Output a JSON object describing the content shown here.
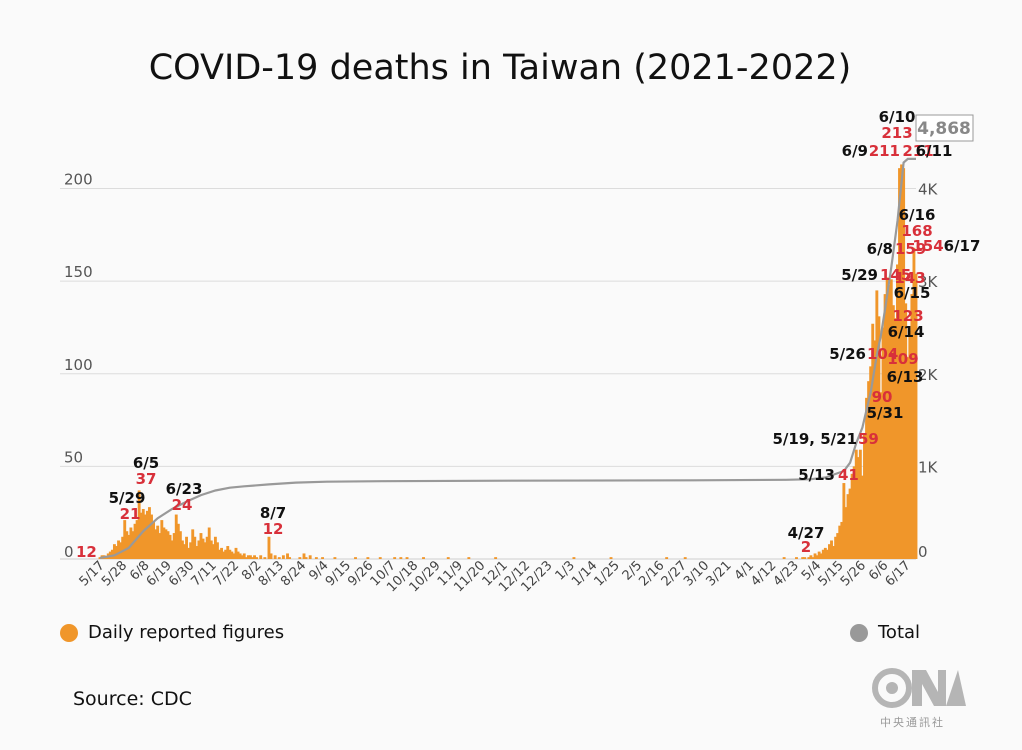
{
  "title": "COVID-19 deaths in Taiwan (2021-2022)",
  "source": "Source: CDC",
  "logo_text": "中央通訊社",
  "legend": [
    {
      "label": "Daily reported figures",
      "color": "#f0962a"
    },
    {
      "label": "Total",
      "color": "#999999"
    }
  ],
  "chart_data": {
    "type": "bar",
    "title": "COVID-19 deaths in Taiwan (2021-2022)",
    "left_axis": {
      "ticks": [
        "0",
        "50",
        "100",
        "150",
        "200"
      ],
      "values": [
        0,
        50,
        100,
        150,
        200
      ],
      "ylim": [
        0,
        210
      ]
    },
    "right_axis": {
      "ticks": [
        "0",
        "1K",
        "2K",
        "3K",
        "4K"
      ],
      "values": [
        0,
        1000,
        2000,
        3000,
        4000
      ],
      "ylim": [
        0,
        4200
      ]
    },
    "x_ticks": [
      "5/17",
      "5/28",
      "6/8",
      "6/19",
      "6/30",
      "7/11",
      "7/22",
      "8/2",
      "8/13",
      "8/24",
      "9/4",
      "9/15",
      "9/26",
      "10/7",
      "10/18",
      "10/29",
      "11/9",
      "11/20",
      "12/1",
      "12/12",
      "12/23",
      "1/3",
      "1/14",
      "1/25",
      "2/5",
      "2/16",
      "2/27",
      "3/10",
      "3/21",
      "4/1",
      "4/12",
      "4/23",
      "5/4",
      "5/15",
      "5/26",
      "6/6",
      "6/17"
    ],
    "series": [
      {
        "name": "Daily reported figures",
        "color": "#f0962a",
        "type": "bar",
        "points": [
          [
            "2021-05-17",
            1
          ],
          [
            "2021-05-18",
            2
          ],
          [
            "2021-05-19",
            2
          ],
          [
            "2021-05-20",
            1
          ],
          [
            "2021-05-21",
            3
          ],
          [
            "2021-05-22",
            4
          ],
          [
            "2021-05-23",
            5
          ],
          [
            "2021-05-24",
            8
          ],
          [
            "2021-05-25",
            7
          ],
          [
            "2021-05-26",
            10
          ],
          [
            "2021-05-27",
            9
          ],
          [
            "2021-05-28",
            12
          ],
          [
            "2021-05-29",
            21
          ],
          [
            "2021-05-30",
            15
          ],
          [
            "2021-05-31",
            13
          ],
          [
            "2021-06-01",
            17
          ],
          [
            "2021-06-02",
            15
          ],
          [
            "2021-06-03",
            19
          ],
          [
            "2021-06-04",
            21
          ],
          [
            "2021-06-05",
            37
          ],
          [
            "2021-06-06",
            25
          ],
          [
            "2021-06-07",
            27
          ],
          [
            "2021-06-08",
            24
          ],
          [
            "2021-06-09",
            26
          ],
          [
            "2021-06-10",
            28
          ],
          [
            "2021-06-11",
            24
          ],
          [
            "2021-06-12",
            20
          ],
          [
            "2021-06-13",
            16
          ],
          [
            "2021-06-14",
            18
          ],
          [
            "2021-06-15",
            14
          ],
          [
            "2021-06-16",
            21
          ],
          [
            "2021-06-17",
            17
          ],
          [
            "2021-06-18",
            16
          ],
          [
            "2021-06-19",
            15
          ],
          [
            "2021-06-20",
            13
          ],
          [
            "2021-06-21",
            10
          ],
          [
            "2021-06-22",
            14
          ],
          [
            "2021-06-23",
            24
          ],
          [
            "2021-06-24",
            19
          ],
          [
            "2021-06-25",
            15
          ],
          [
            "2021-06-26",
            10
          ],
          [
            "2021-06-27",
            8
          ],
          [
            "2021-06-28",
            12
          ],
          [
            "2021-06-29",
            6
          ],
          [
            "2021-06-30",
            9
          ],
          [
            "2021-07-01",
            16
          ],
          [
            "2021-07-02",
            12
          ],
          [
            "2021-07-03",
            7
          ],
          [
            "2021-07-04",
            10
          ],
          [
            "2021-07-05",
            14
          ],
          [
            "2021-07-06",
            11
          ],
          [
            "2021-07-07",
            9
          ],
          [
            "2021-07-08",
            12
          ],
          [
            "2021-07-09",
            17
          ],
          [
            "2021-07-10",
            10
          ],
          [
            "2021-07-11",
            8
          ],
          [
            "2021-07-12",
            12
          ],
          [
            "2021-07-13",
            9
          ],
          [
            "2021-07-14",
            5
          ],
          [
            "2021-07-15",
            6
          ],
          [
            "2021-07-16",
            4
          ],
          [
            "2021-07-17",
            5
          ],
          [
            "2021-07-18",
            7
          ],
          [
            "2021-07-19",
            5
          ],
          [
            "2021-07-20",
            4
          ],
          [
            "2021-07-21",
            3
          ],
          [
            "2021-07-22",
            6
          ],
          [
            "2021-07-23",
            4
          ],
          [
            "2021-07-24",
            3
          ],
          [
            "2021-07-25",
            2
          ],
          [
            "2021-07-26",
            3
          ],
          [
            "2021-07-27",
            1
          ],
          [
            "2021-07-28",
            2
          ],
          [
            "2021-07-29",
            2
          ],
          [
            "2021-07-30",
            1
          ],
          [
            "2021-07-31",
            2
          ],
          [
            "2021-08-01",
            1
          ],
          [
            "2021-08-03",
            2
          ],
          [
            "2021-08-05",
            1
          ],
          [
            "2021-08-07",
            12
          ],
          [
            "2021-08-08",
            3
          ],
          [
            "2021-08-10",
            2
          ],
          [
            "2021-08-12",
            1
          ],
          [
            "2021-08-14",
            2
          ],
          [
            "2021-08-16",
            3
          ],
          [
            "2021-08-17",
            1
          ],
          [
            "2021-08-22",
            1
          ],
          [
            "2021-08-24",
            3
          ],
          [
            "2021-08-25",
            1
          ],
          [
            "2021-08-27",
            2
          ],
          [
            "2021-08-30",
            1
          ],
          [
            "2021-09-02",
            1
          ],
          [
            "2021-09-08",
            1
          ],
          [
            "2021-09-18",
            1
          ],
          [
            "2021-09-24",
            1
          ],
          [
            "2021-09-30",
            1
          ],
          [
            "2021-10-07",
            1
          ],
          [
            "2021-10-10",
            1
          ],
          [
            "2021-10-13",
            1
          ],
          [
            "2021-10-21",
            1
          ],
          [
            "2021-11-02",
            1
          ],
          [
            "2021-11-12",
            1
          ],
          [
            "2021-11-25",
            1
          ],
          [
            "2022-01-02",
            1
          ],
          [
            "2022-01-20",
            1
          ],
          [
            "2022-02-16",
            1
          ],
          [
            "2022-02-25",
            1
          ],
          [
            "2022-04-14",
            1
          ],
          [
            "2022-04-20",
            1
          ],
          [
            "2022-04-23",
            1
          ],
          [
            "2022-04-24",
            1
          ],
          [
            "2022-04-26",
            1
          ],
          [
            "2022-04-27",
            2
          ],
          [
            "2022-04-28",
            1
          ],
          [
            "2022-04-29",
            3
          ],
          [
            "2022-04-30",
            2
          ],
          [
            "2022-05-01",
            4
          ],
          [
            "2022-05-02",
            3
          ],
          [
            "2022-05-03",
            5
          ],
          [
            "2022-05-04",
            6
          ],
          [
            "2022-05-05",
            5
          ],
          [
            "2022-05-06",
            8
          ],
          [
            "2022-05-07",
            10
          ],
          [
            "2022-05-08",
            7
          ],
          [
            "2022-05-09",
            12
          ],
          [
            "2022-05-10",
            14
          ],
          [
            "2022-05-11",
            18
          ],
          [
            "2022-05-12",
            20
          ],
          [
            "2022-05-13",
            41
          ],
          [
            "2022-05-14",
            28
          ],
          [
            "2022-05-15",
            35
          ],
          [
            "2022-05-16",
            38
          ],
          [
            "2022-05-17",
            46
          ],
          [
            "2022-05-18",
            50
          ],
          [
            "2022-05-19",
            59
          ],
          [
            "2022-05-20",
            55
          ],
          [
            "2022-05-21",
            59
          ],
          [
            "2022-05-22",
            45
          ],
          [
            "2022-05-23",
            68
          ],
          [
            "2022-05-24",
            87
          ],
          [
            "2022-05-25",
            96
          ],
          [
            "2022-05-26",
            104
          ],
          [
            "2022-05-27",
            127
          ],
          [
            "2022-05-28",
            118
          ],
          [
            "2022-05-29",
            145
          ],
          [
            "2022-05-30",
            131
          ],
          [
            "2022-05-31",
            90
          ],
          [
            "2022-06-01",
            125
          ],
          [
            "2022-06-02",
            143
          ],
          [
            "2022-06-03",
            152
          ],
          [
            "2022-06-04",
            148
          ],
          [
            "2022-06-05",
            151
          ],
          [
            "2022-06-06",
            137
          ],
          [
            "2022-06-07",
            130
          ],
          [
            "2022-06-08",
            159
          ],
          [
            "2022-06-09",
            211
          ],
          [
            "2022-06-10",
            213
          ],
          [
            "2022-06-11",
            211
          ],
          [
            "2022-06-12",
            138
          ],
          [
            "2022-06-13",
            109
          ],
          [
            "2022-06-14",
            123
          ],
          [
            "2022-06-15",
            143
          ],
          [
            "2022-06-16",
            168
          ],
          [
            "2022-06-17",
            154
          ]
        ]
      },
      {
        "name": "Total",
        "color": "#999999",
        "type": "line",
        "points": [
          [
            "2021-05-17",
            12
          ],
          [
            "2021-05-24",
            40
          ],
          [
            "2021-05-31",
            120
          ],
          [
            "2021-06-07",
            300
          ],
          [
            "2021-06-14",
            440
          ],
          [
            "2021-06-21",
            540
          ],
          [
            "2021-06-28",
            620
          ],
          [
            "2021-07-05",
            690
          ],
          [
            "2021-07-12",
            740
          ],
          [
            "2021-07-19",
            770
          ],
          [
            "2021-07-26",
            785
          ],
          [
            "2021-08-07",
            805
          ],
          [
            "2021-08-20",
            825
          ],
          [
            "2021-09-04",
            835
          ],
          [
            "2021-10-01",
            840
          ],
          [
            "2021-12-01",
            845
          ],
          [
            "2022-03-01",
            850
          ],
          [
            "2022-04-15",
            855
          ],
          [
            "2022-04-27",
            862
          ],
          [
            "2022-05-04",
            880
          ],
          [
            "2022-05-13",
            950
          ],
          [
            "2022-05-16",
            1040
          ],
          [
            "2022-05-19",
            1250
          ],
          [
            "2022-05-22",
            1420
          ],
          [
            "2022-05-26",
            1800
          ],
          [
            "2022-05-29",
            2200
          ],
          [
            "2022-05-31",
            2420
          ],
          [
            "2022-06-02",
            2700
          ],
          [
            "2022-06-05",
            3150
          ],
          [
            "2022-06-08",
            3650
          ],
          [
            "2022-06-09",
            3860
          ],
          [
            "2022-06-10",
            4070
          ],
          [
            "2022-06-11",
            4280
          ],
          [
            "2022-06-13",
            4500
          ],
          [
            "2022-06-15",
            4700
          ],
          [
            "2022-06-17",
            4868
          ]
        ]
      }
    ],
    "annotations": [
      {
        "date": "2021-05-17",
        "value": "12",
        "label": ""
      },
      {
        "date": "2021-05-29",
        "value": "21",
        "label": "5/29"
      },
      {
        "date": "2021-06-05",
        "value": "37",
        "label": "6/5"
      },
      {
        "date": "2021-06-23",
        "value": "24",
        "label": "6/23"
      },
      {
        "date": "2021-08-07",
        "value": "12",
        "label": "8/7"
      },
      {
        "date": "2022-04-27",
        "value": "2",
        "label": "4/27"
      },
      {
        "date": "2022-05-13",
        "value": "41",
        "label": "5/13"
      },
      {
        "date": "2022-05-19",
        "value": "59",
        "label": "5/19, 5/21"
      },
      {
        "date": "2022-05-26",
        "value": "104",
        "label": "5/26"
      },
      {
        "date": "2022-05-29",
        "value": "145",
        "label": "5/29"
      },
      {
        "date": "2022-05-31",
        "value": "90",
        "label": "5/31"
      },
      {
        "date": "2022-06-08",
        "value": "159",
        "label": "6/8"
      },
      {
        "date": "2022-06-09",
        "value": "211",
        "label": "6/9"
      },
      {
        "date": "2022-06-10",
        "value": "213",
        "label": "6/10"
      },
      {
        "date": "2022-06-11",
        "value": "211",
        "label": "6/11"
      },
      {
        "date": "2022-06-13",
        "value": "109",
        "label": "6/13"
      },
      {
        "date": "2022-06-14",
        "value": "123",
        "label": "6/14"
      },
      {
        "date": "2022-06-15",
        "value": "143",
        "label": "6/15"
      },
      {
        "date": "2022-06-16",
        "value": "168",
        "label": "6/16"
      },
      {
        "date": "2022-06-17",
        "value": "154",
        "label": "6/17"
      }
    ],
    "total_label": "4,868",
    "grid": true
  }
}
